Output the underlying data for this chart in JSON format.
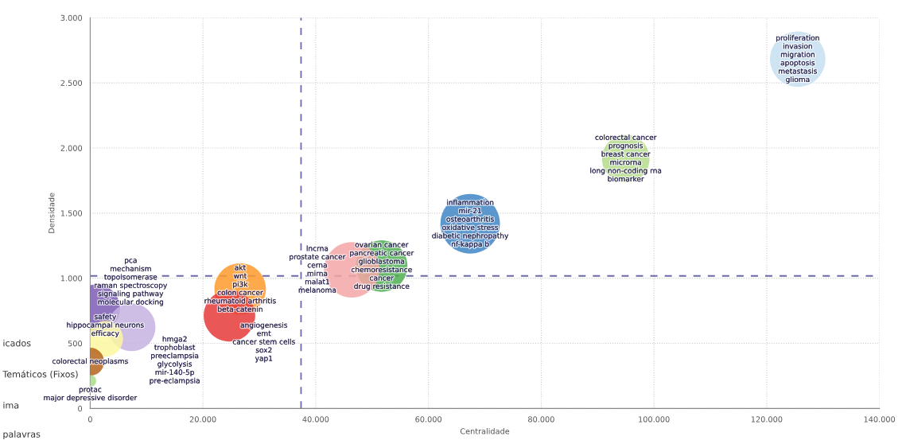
{
  "chart_data": {
    "type": "bubble",
    "xlabel": "Centralidade",
    "ylabel": "Densidade",
    "x": [
      125500,
      95000,
      67400,
      51700,
      46400,
      26600,
      24700,
      1070,
      7350,
      2670,
      0,
      0
    ],
    "values": [
      2682,
      1918,
      1418,
      1094,
      1065,
      918,
      712,
      770,
      624,
      535,
      359,
      212
    ],
    "sizes": [
      0.87,
      0.64,
      1,
      0.75,
      0.87,
      0.75,
      0.75,
      0.64,
      0.64,
      0.36,
      0.22,
      0.04
    ],
    "colors": [
      "#c6dff0",
      "#b5dc8a",
      "#3f86c6",
      "#4caf50",
      "#f4a6a6",
      "#ff9a2e",
      "#e6393a",
      "#7d5cb4",
      "#c6b3e0",
      "#fbf7a0",
      "#b5651d",
      "#a8dc8c"
    ],
    "value_labels": [
      "proliferation\ninvasion\nmigration\napoptosis\nmetastasis\nglioma",
      "colorectal cancer\nprognosis\nbreast cancer\nmicrorna\nlong non-coding rna\nbiomarker",
      "inflammation\nmir-21\nosteoarthritis\noxidative stress\ndiabetic nephropathy\nnf-kappa b",
      "ovarian cancer\npancreatic cancer\nglioblastoma\nchemoresistance\ncancer\ndrug resistance",
      "lncrna\nprostate cancer\ncerna\nmirna\nmalat1\nmelanoma",
      "akt\nwnt\npi3k\ncolon cancer\nrheumatoid arthritis\nbeta-catenin",
      "angiogenesis\nemt\ncancer stem cells\nsox2\nyap1",
      "pca\nmechanism\ntopoisomerase\nraman spectroscopy\nsignaling pathway\nmolecular docking",
      "hmga2\ntrophoblast\npreeclampsia\nglycolysis\nmir-140-5p\npre-eclampsia",
      "safety\nhippocampal neurons\nefficacy",
      "colorectal neoplasms",
      "protac\nmajor depressive disorder"
    ],
    "xlim": [
      0,
      140000
    ],
    "ylim": [
      0,
      3000
    ],
    "xticks": [
      {
        "value": 0,
        "label": "0"
      },
      {
        "value": 20000,
        "label": "20.000"
      },
      {
        "value": 40000,
        "label": "40.000"
      },
      {
        "value": 60000,
        "label": "60.000"
      },
      {
        "value": 80000,
        "label": "80.000"
      },
      {
        "value": 100000,
        "label": "100.000"
      },
      {
        "value": 120000,
        "label": "120.000"
      },
      {
        "value": 140000,
        "label": "140.000"
      }
    ],
    "yticks": [
      {
        "value": 0,
        "label": "0"
      },
      {
        "value": 500,
        "label": "500"
      },
      {
        "value": 1000,
        "label": "1.000"
      },
      {
        "value": 1500,
        "label": "1.500"
      },
      {
        "value": 2000,
        "label": "2.000"
      },
      {
        "value": 2500,
        "label": "2.500"
      },
      {
        "value": 3000,
        "label": "3.000"
      }
    ],
    "ref_lines": [
      {
        "axis": "x",
        "value": 37400,
        "color": "#6a6aa8",
        "line_style": "dashed"
      },
      {
        "axis": "y",
        "value": 1018,
        "color": "#6a6aa8",
        "line_style": "dashed"
      }
    ],
    "annotations": [
      "icados",
      "Temáticos (Fixos)",
      "ima",
      "palavras"
    ],
    "grid": true,
    "legend": false
  }
}
